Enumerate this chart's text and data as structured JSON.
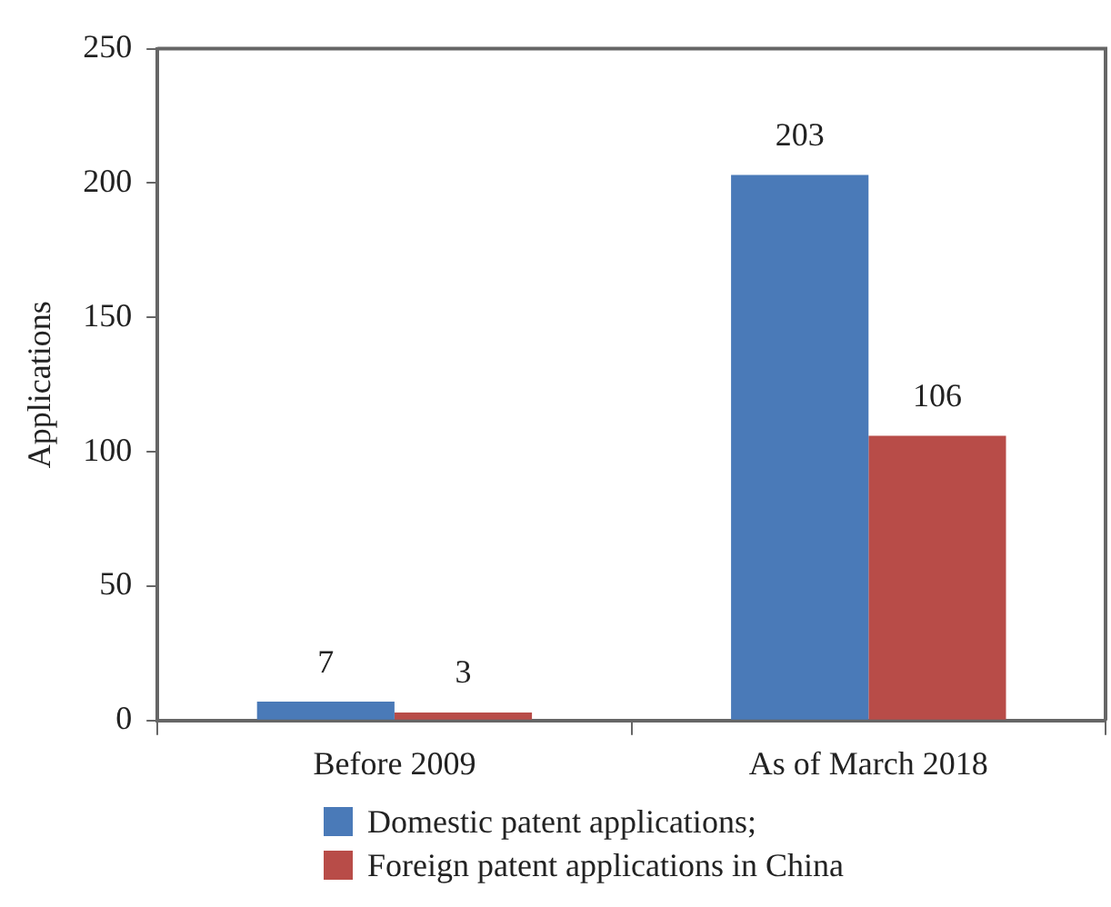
{
  "chart_data": {
    "type": "bar",
    "ylabel": "Applications",
    "categories": [
      "Before 2009",
      "As of March 2018"
    ],
    "series": [
      {
        "name": "Domestic patent applications;",
        "color": "#4a7ab8",
        "values": [
          7,
          203
        ]
      },
      {
        "name": "Foreign patent applications in China",
        "color": "#b84c48",
        "values": [
          3,
          106
        ]
      }
    ],
    "ylim": [
      0,
      250
    ],
    "yticks": [
      0,
      50,
      100,
      150,
      200,
      250
    ],
    "grid": false,
    "legend": "bottom",
    "data_labels": true
  }
}
